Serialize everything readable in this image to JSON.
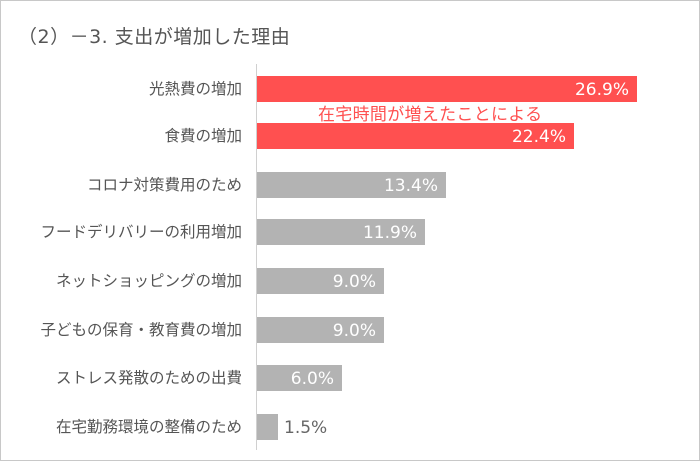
{
  "chart_data": {
    "type": "bar",
    "orientation": "horizontal",
    "title": "（2）－3. 支出が増加した理由",
    "xlabel": "",
    "ylabel": "",
    "unit": "%",
    "grid": false,
    "legend": null,
    "categories": [
      "光熱費の増加",
      "食費の増加",
      "コロナ対策費用のため",
      "フードデリバリーの利用増加",
      "ネットショッピングの増加",
      "子どもの保育・教育費の増加",
      "ストレス発散のための出費",
      "在宅勤務環境の整備のため"
    ],
    "values": [
      26.9,
      22.4,
      13.4,
      11.9,
      9.0,
      9.0,
      6.0,
      1.5
    ],
    "value_labels": [
      "26.9%",
      "22.4%",
      "13.4%",
      "11.9%",
      "9.0%",
      "9.0%",
      "6.0%",
      "1.5%"
    ],
    "highlighted": [
      true,
      true,
      false,
      false,
      false,
      false,
      false,
      false
    ],
    "annotations": [
      {
        "text": "在宅時間が増えたことによる",
        "applies_to": [
          "光熱費の増加",
          "食費の増加"
        ]
      }
    ],
    "colors": {
      "highlight": "#ff5050",
      "default": "#b3b3b3",
      "annotation": "#ff5050"
    }
  }
}
